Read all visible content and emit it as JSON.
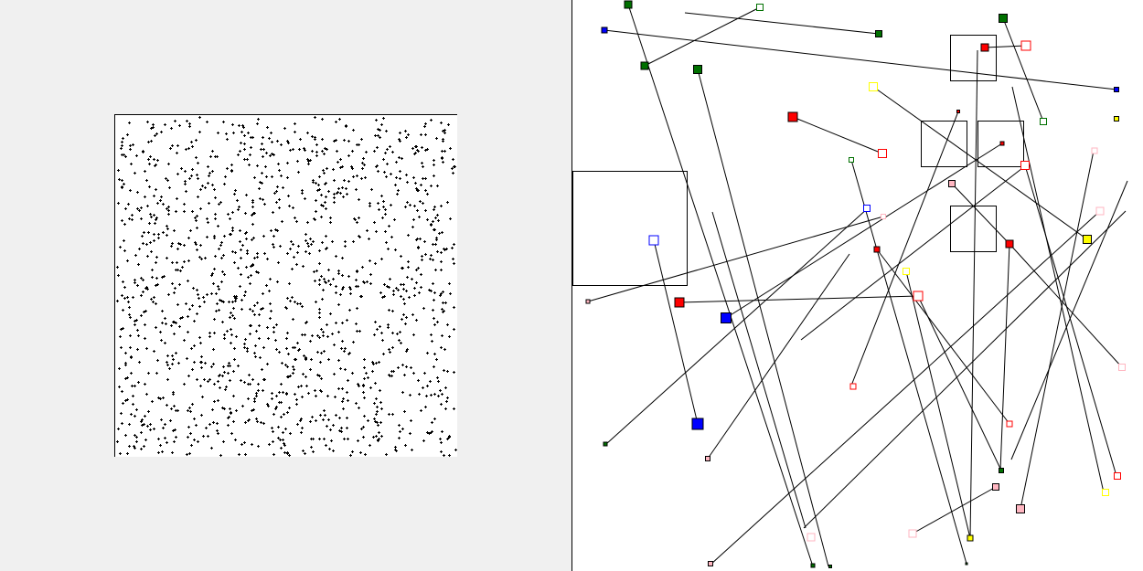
{
  "left_panel": {
    "point_count": 1500,
    "point_color": "#000000",
    "point_icon": "plus-marker"
  },
  "right_panel": {
    "colors": {
      "red": "#ff0000",
      "green": "#007000",
      "blue": "#0000ff",
      "yellow": "#ffff00",
      "pink": "#ffb6c1",
      "line": "#000000"
    }
  }
}
